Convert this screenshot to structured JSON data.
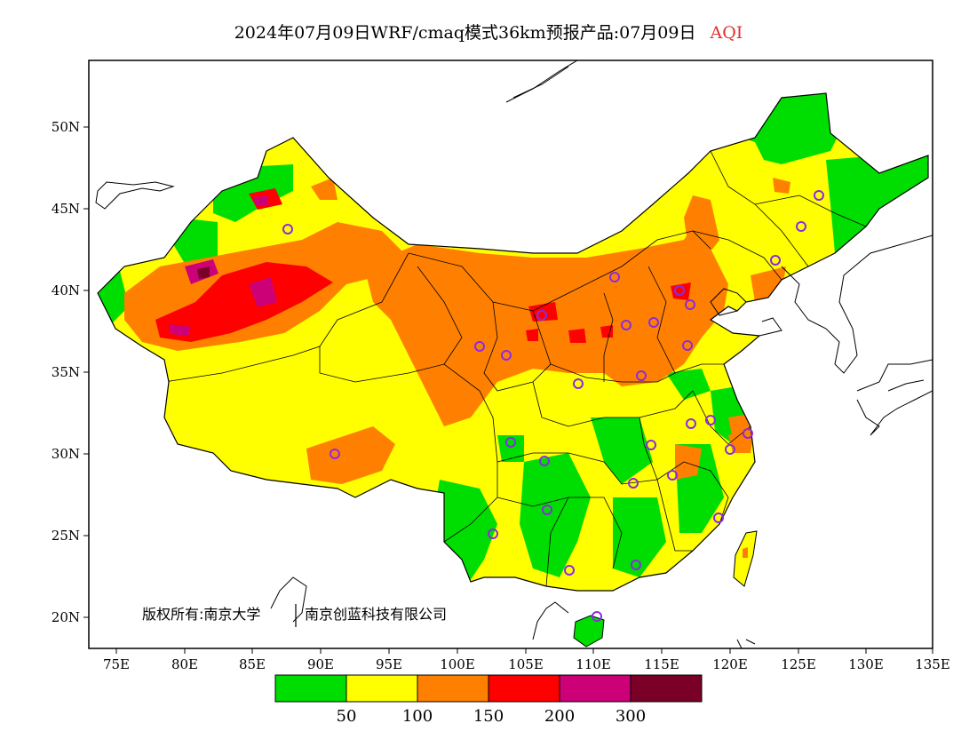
{
  "title": {
    "main": "2024年07月09日WRF/cmaq模式36km预报产品:07月09日",
    "pollutant": "AQI"
  },
  "axes": {
    "lat_labels": [
      "50N",
      "45N",
      "40N",
      "35N",
      "30N",
      "25N",
      "20N"
    ],
    "lon_labels": [
      "75E",
      "80E",
      "85E",
      "90E",
      "95E",
      "100E",
      "105E",
      "110E",
      "115E",
      "120E",
      "125E",
      "130E",
      "135E"
    ]
  },
  "legend": {
    "colors": [
      "#00dd00",
      "#ffff00",
      "#ff8000",
      "#ff0000",
      "#cc0077",
      "#7a0028"
    ],
    "labels": [
      "50",
      "100",
      "150",
      "200",
      "300"
    ]
  },
  "copyright": {
    "owner_a": "版权所有:南京大学",
    "owner_b": "南京创蓝科技有限公司"
  },
  "map_colors": {
    "good": "#00dd00",
    "moderate": "#ffff00",
    "unhealthy_sensitive": "#ff8000",
    "unhealthy": "#ff0000",
    "very_unhealthy": "#cc0077",
    "hazardous": "#7a0028",
    "city_marker": "#8a2be2"
  }
}
